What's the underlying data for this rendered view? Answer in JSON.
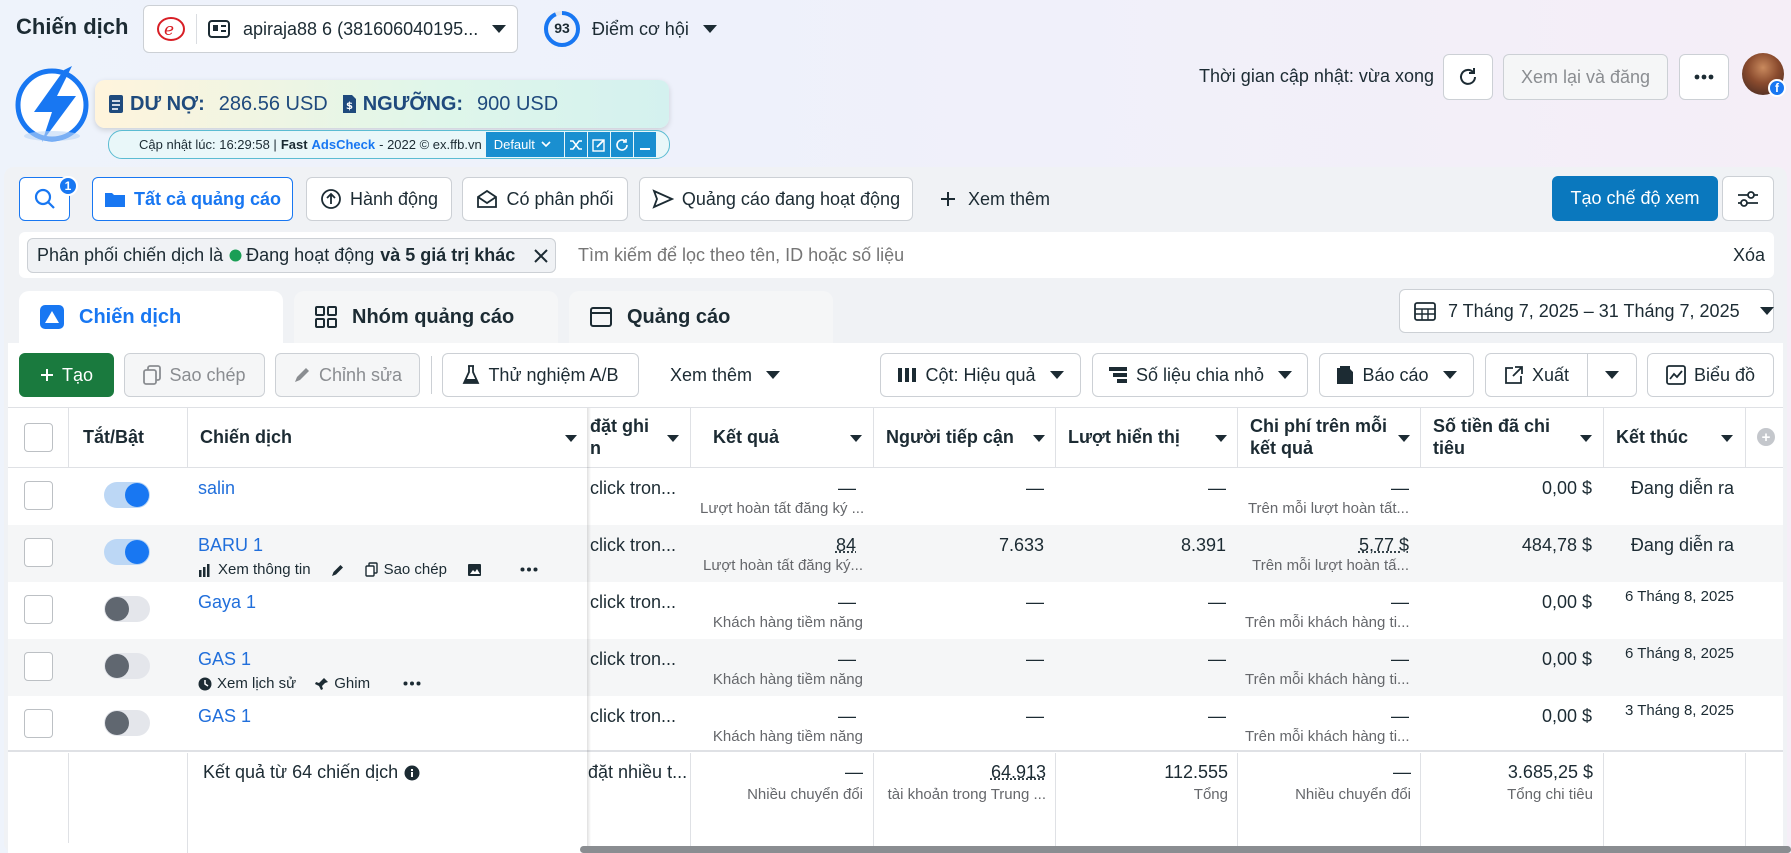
{
  "header": {
    "title": "Chiến dịch",
    "account_name": "apiraja88 6 (381606040195...",
    "opportunity_score": "93",
    "opportunity_label": "Điểm cơ hội",
    "update_time": "Thời gian cập nhật: vừa xong",
    "review_publish": "Xem lại và đăng",
    "more": "···"
  },
  "adscheck": {
    "debt_label": "DƯ NỢ:",
    "debt_value": "286.56 USD",
    "threshold_label": "NGƯỠNG:",
    "threshold_value": "900 USD",
    "updated_at": "Cập nhật lúc: 16:29:58 |",
    "brand_fast": "Fast",
    "brand_name": "AdsCheck",
    "copyright": "- 2022 © ex.ffb.vn",
    "preset": "Default"
  },
  "filters": {
    "search_badge": "1",
    "all_ads": "Tất cả quảng cáo",
    "actions": "Hành động",
    "has_delivery": "Có phân phối",
    "active_ads": "Quảng cáo đang hoạt động",
    "see_more": "Xem thêm",
    "create_view": "Tạo chế độ xem",
    "chip_prefix": "Phân phối chiến dịch là",
    "chip_value": "Đang hoạt động",
    "chip_suffix": "và 5 giá trị khác",
    "search_placeholder": "Tìm kiếm để lọc theo tên, ID hoặc số liệu",
    "clear": "Xóa"
  },
  "tabs": {
    "campaigns": "Chiến dịch",
    "adsets": "Nhóm quảng cáo",
    "ads": "Quảng cáo"
  },
  "date_range": "7 Tháng 7, 2025 – 31 Tháng 7, 2025",
  "toolbar": {
    "create": "Tạo",
    "duplicate": "Sao chép",
    "edit": "Chỉnh sửa",
    "ab_test": "Thử nghiệm A/B",
    "more": "Xem thêm",
    "columns": "Cột: Hiệu quả",
    "breakdown": "Số liệu chia nhỏ",
    "reports": "Báo cáo",
    "export": "Xuất",
    "charts": "Biểu đồ"
  },
  "columns": {
    "toggle": "Tắt/Bật",
    "campaign": "Chiến dịch",
    "attribution": "đặt ghi",
    "attribution2": "n",
    "results": "Kết quả",
    "reach": "Người tiếp cận",
    "impressions": "Lượt hiển thị",
    "cost_per_result": "Chi phí trên mỗi",
    "cost_per_result2": "kết quả",
    "amount_spent": "Số tiền đã chi",
    "amount_spent2": "tiêu",
    "ends": "Kết thúc"
  },
  "rows": [
    {
      "name": "salin",
      "on": true,
      "attribution": "click tron...",
      "results": "—",
      "results_sub": "Lượt hoàn tất đăng ký ...",
      "reach": "—",
      "impressions": "—",
      "cpr": "—",
      "cpr_sub": "Trên mỗi lượt hoàn tất...",
      "spent": "0,00 $",
      "ends": "Đang diễn ra"
    },
    {
      "name": "BARU 1",
      "on": true,
      "attribution": "click tron...",
      "results": "84",
      "results_sub": "Lượt hoàn tất đăng ký...",
      "reach": "7.633",
      "impressions": "8.391",
      "cpr": "5,77 $",
      "cpr_sub": "Trên mỗi lượt hoàn tấ...",
      "spent": "484,78 $",
      "ends": "Đang diễn ra",
      "actions": [
        "Xem thông tin",
        "Sao chép"
      ]
    },
    {
      "name": "Gaya 1",
      "on": false,
      "attribution": "click tron...",
      "results": "—",
      "results_sub": "Khách hàng tiềm năng",
      "reach": "—",
      "impressions": "—",
      "cpr": "—",
      "cpr_sub": "Trên mỗi khách hàng ti...",
      "spent": "0,00 $",
      "ends": "6 Tháng 8, 2025"
    },
    {
      "name": "GAS 1",
      "on": false,
      "attribution": "click tron...",
      "results": "—",
      "results_sub": "Khách hàng tiềm năng",
      "reach": "—",
      "impressions": "—",
      "cpr": "—",
      "cpr_sub": "Trên mỗi khách hàng ti...",
      "spent": "0,00 $",
      "ends": "6 Tháng 8, 2025",
      "actions": [
        "Xem lịch sử",
        "Ghim"
      ]
    },
    {
      "name": "GAS 1",
      "on": false,
      "attribution": "click tron...",
      "results": "—",
      "results_sub": "Khách hàng tiềm năng",
      "reach": "—",
      "impressions": "—",
      "cpr": "—",
      "cpr_sub": "Trên mỗi khách hàng ti...",
      "spent": "0,00 $",
      "ends": "3 Tháng 8, 2025"
    }
  ],
  "summary": {
    "label": "Kết quả từ 64 chiến dịch",
    "attribution": "đặt nhiều t...",
    "results": "—",
    "results_sub": "Nhiều chuyển đổi",
    "reach": "64.913",
    "reach_sub": "tài khoản trong Trung ...",
    "impressions": "112.555",
    "impressions_sub": "Tổng",
    "cpr": "—",
    "cpr_sub": "Nhiều chuyển đổi",
    "spent": "3.685,25 $",
    "spent_sub": "Tổng chi tiêu"
  },
  "colors": {
    "primary": "#1877f2",
    "create_green": "#1a7a3e",
    "link": "#216fdb",
    "dark_blue_button": "#0a78be"
  }
}
